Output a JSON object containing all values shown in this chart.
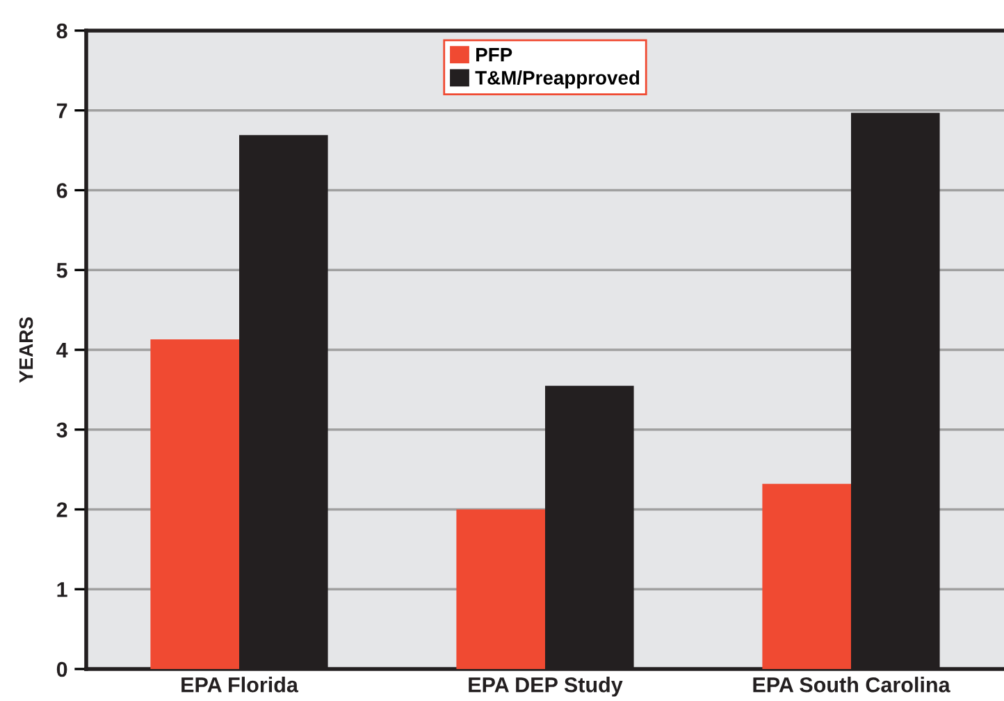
{
  "chart_data": {
    "type": "bar",
    "ylabel": "YEARS",
    "categories": [
      "EPA Florida",
      "EPA DEP Study",
      "EPA South Carolina"
    ],
    "series": [
      {
        "name": "PFP",
        "color": "#f04a32",
        "values": [
          4.13,
          2.0,
          2.32
        ]
      },
      {
        "name": "T&M/Preapproved",
        "color": "#231f20",
        "values": [
          6.69,
          3.55,
          6.97
        ]
      }
    ],
    "ylim": [
      0,
      8
    ],
    "yticks": [
      0,
      1,
      2,
      3,
      4,
      5,
      6,
      7,
      8
    ],
    "grid": "y",
    "legend": "top"
  }
}
